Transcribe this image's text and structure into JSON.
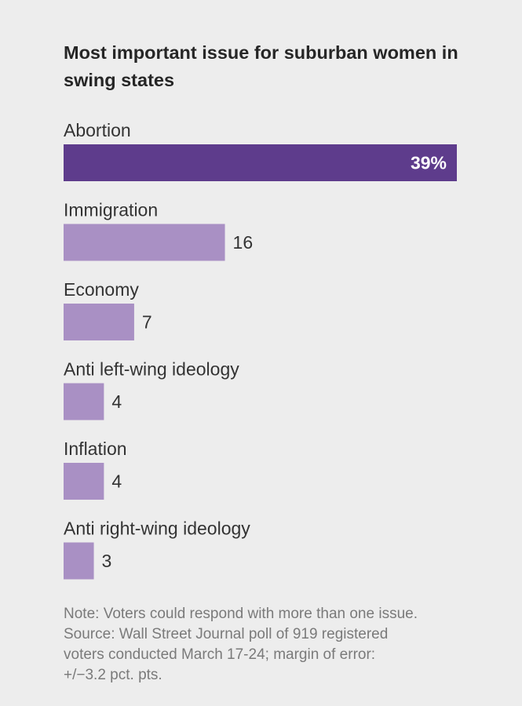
{
  "chart_data": {
    "type": "bar",
    "orientation": "horizontal",
    "title": "Most important issue for suburban women in swing states",
    "categories": [
      "Abortion",
      "Immigration",
      "Economy",
      "Anti left-wing ideology",
      "Inflation",
      "Anti right-wing ideology"
    ],
    "values": [
      39,
      16,
      7,
      4,
      4,
      3
    ],
    "value_labels": [
      "39%",
      "16",
      "7",
      "4",
      "4",
      "3"
    ],
    "xlim": [
      0,
      39
    ],
    "grid": false,
    "legend": "none",
    "highlight_index": 0
  },
  "colors": {
    "highlight_bar": "#5e3c8c",
    "bar": "#a990c4",
    "background": "#ededed"
  },
  "notes": {
    "line1": "Note: Voters could respond with more than one issue.",
    "line2": "Source: Wall Street Journal poll of 919 registered",
    "line3": "voters conducted March 17-24; margin of error:",
    "line4": "+/−3.2 pct. pts."
  }
}
